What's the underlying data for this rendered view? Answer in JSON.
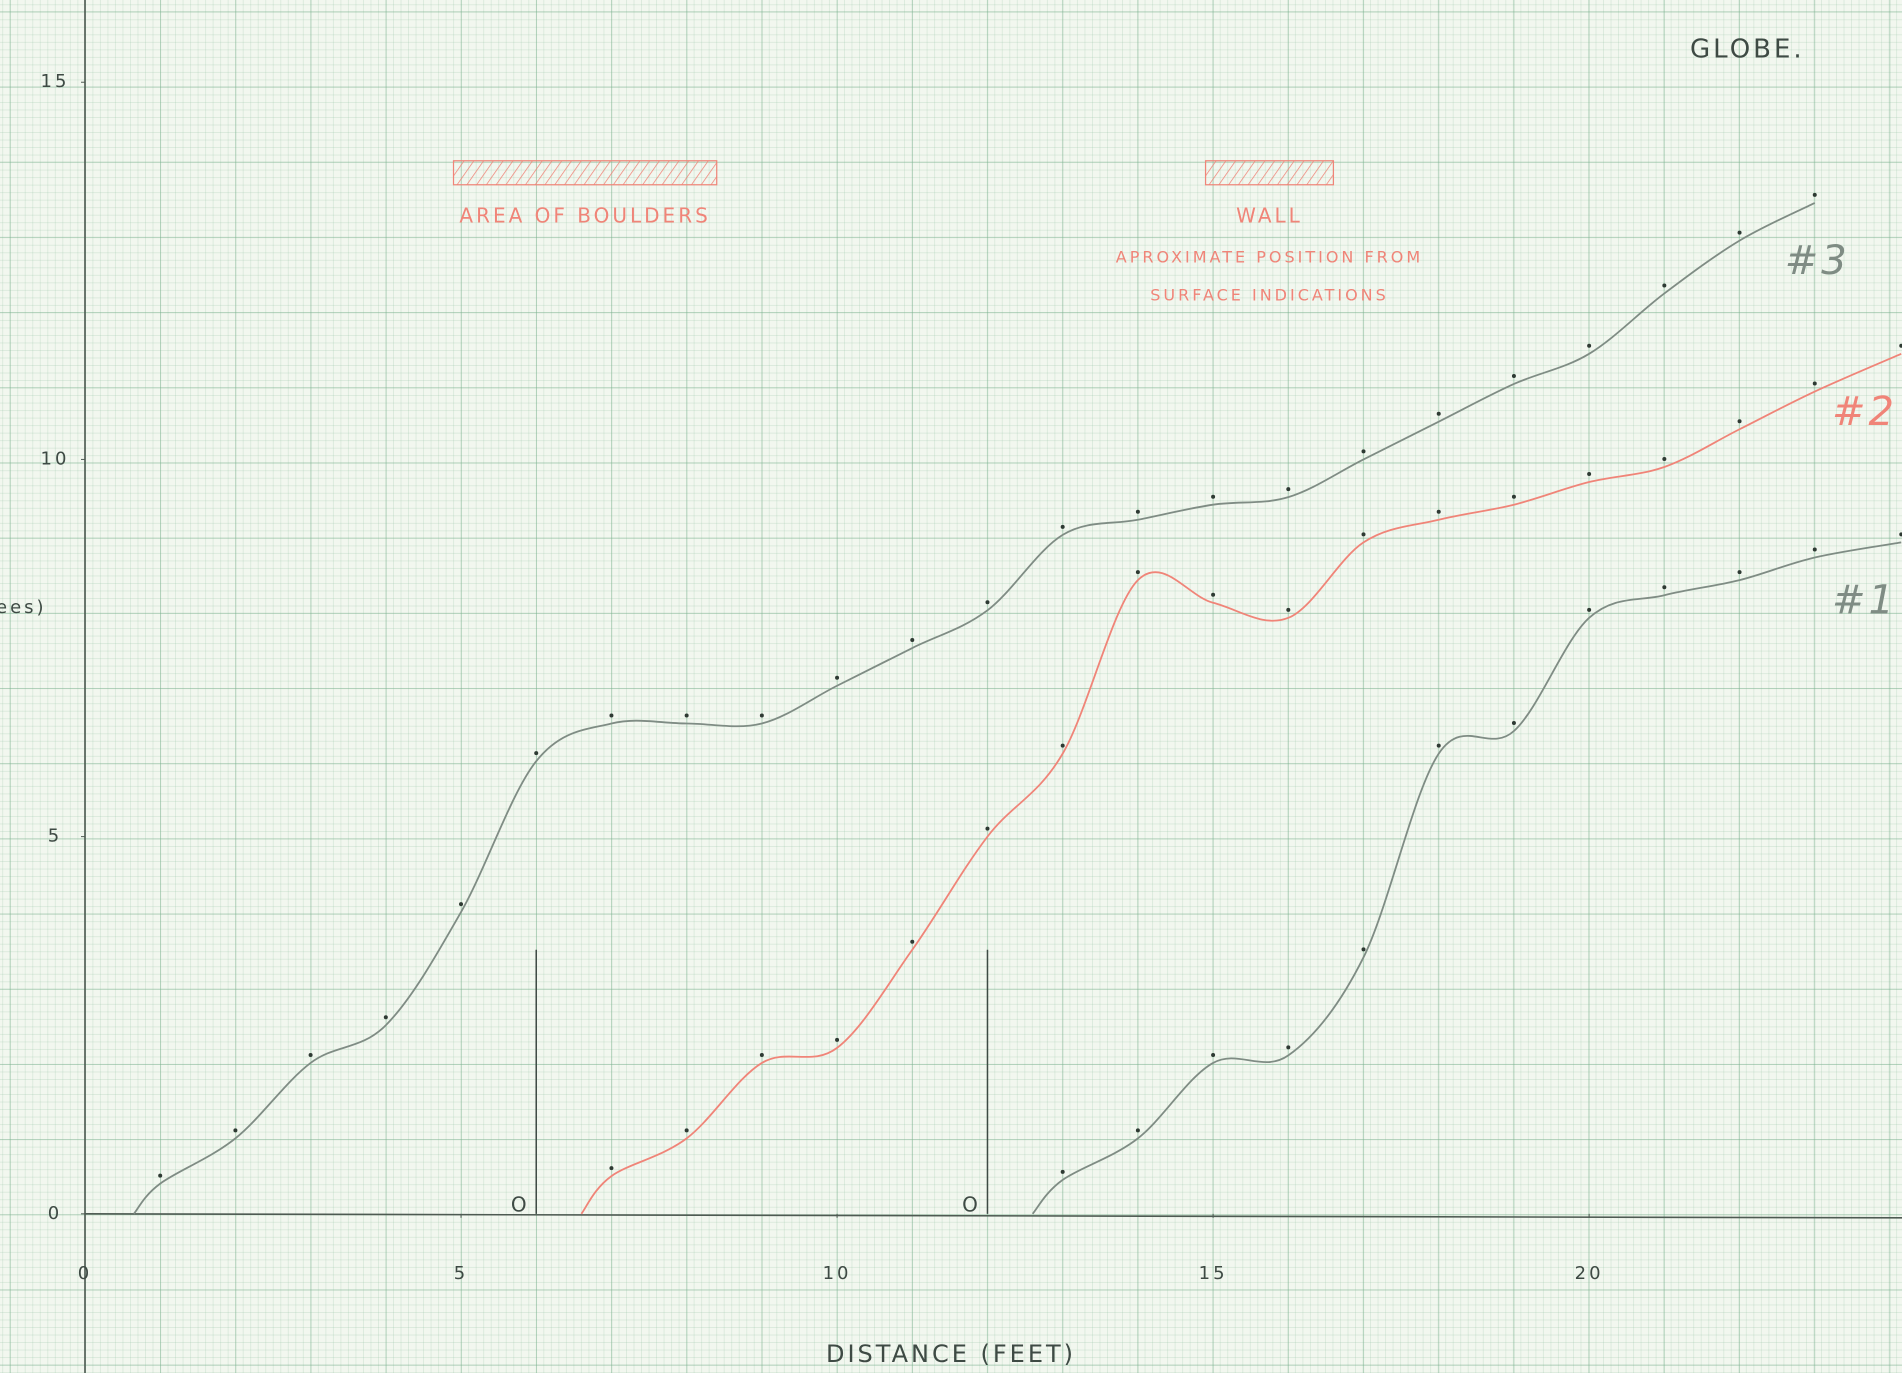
{
  "chart_data": {
    "type": "line",
    "title": "GLOBE.",
    "x_label": "DISTANCE (FEET)",
    "y_label": "ees)",
    "xlim": [
      -1.13,
      24.16
    ],
    "ylim": [
      -2.11,
      16.09
    ],
    "xticks": [
      0,
      5,
      10,
      15,
      20
    ],
    "yticks": [
      0,
      5,
      10,
      15
    ],
    "grid": true,
    "series": [
      {
        "name": "#3",
        "color": "#7f8c84",
        "x": [
          0.65,
          1,
          2,
          3,
          4,
          5,
          6,
          7,
          8,
          9,
          10,
          11,
          12,
          13,
          14,
          15,
          16,
          17,
          18,
          19,
          20,
          21,
          22,
          23
        ],
        "values": [
          0,
          0.4,
          1,
          2,
          2.5,
          4,
          6,
          6.5,
          6.5,
          6.5,
          7,
          7.5,
          8,
          9,
          9.2,
          9.4,
          9.5,
          10,
          10.5,
          11,
          11.4,
          12.2,
          12.9,
          13.4
        ]
      },
      {
        "name": "#2",
        "color": "#f08478",
        "x": [
          6.6,
          7,
          8,
          9,
          10,
          11,
          12,
          13,
          14,
          15,
          16,
          17,
          18,
          19,
          20,
          21,
          22,
          23,
          24.15
        ],
        "values": [
          0,
          0.5,
          1,
          2,
          2.2,
          3.5,
          5,
          6.1,
          8.4,
          8.1,
          7.9,
          8.9,
          9.2,
          9.4,
          9.7,
          9.9,
          10.4,
          10.9,
          11.4
        ]
      },
      {
        "name": "#1",
        "color": "#7f8c84",
        "x": [
          12.6,
          13,
          14,
          15,
          16,
          17,
          18,
          19,
          20,
          21,
          22,
          23,
          24.15
        ],
        "values": [
          0,
          0.45,
          1,
          2,
          2.1,
          3.4,
          6.1,
          6.4,
          7.9,
          8.2,
          8.4,
          8.7,
          8.9
        ]
      }
    ],
    "reference_lines": [
      {
        "x": 6,
        "top": 3.5,
        "label": "O"
      },
      {
        "x": 12,
        "top": 3.5,
        "label": "O"
      }
    ],
    "regions": [
      {
        "label": "AREA OF BOULDERS",
        "x": [
          4.9,
          8.4
        ]
      },
      {
        "label": "WALL",
        "x": [
          14.9,
          16.6
        ],
        "note": [
          "APROXIMATE POSITION FROM",
          "SURFACE INDICATIONS"
        ]
      }
    ]
  }
}
